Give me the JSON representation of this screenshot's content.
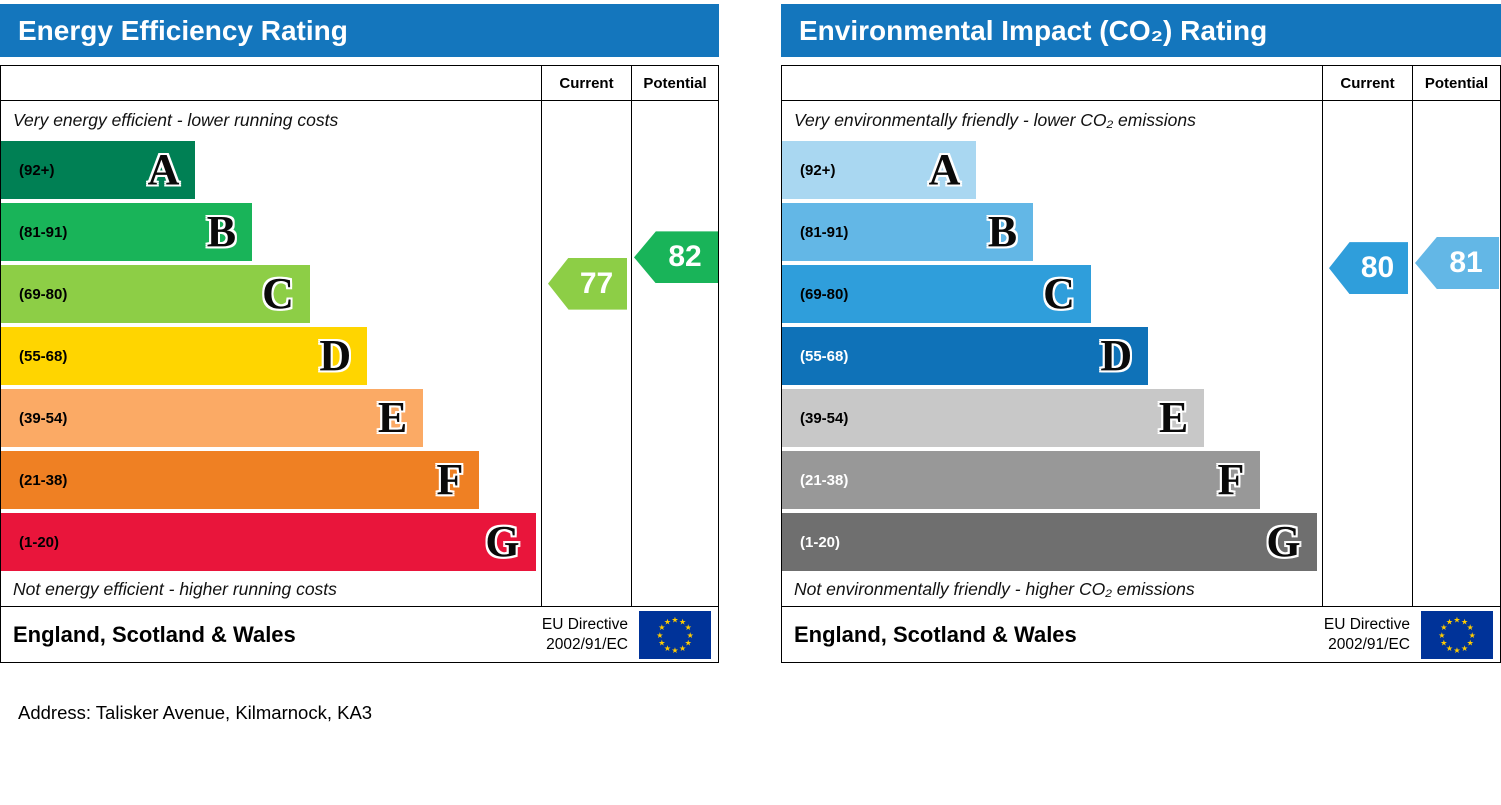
{
  "address_line": "Address: Talisker Avenue, Kilmarnock, KA3",
  "eu_flag": {
    "background": "#003399",
    "star_color": "#ffcc00"
  },
  "chart_data": [
    {
      "type": "bar",
      "subtype": "epc-rating-scale",
      "title": "Energy Efficiency Rating",
      "header_color": "#1476bd",
      "columns": {
        "current": "Current",
        "potential": "Potential"
      },
      "top_note": "Very energy efficient - lower running costs",
      "bottom_note": "Not energy efficient - higher running costs",
      "region": "England, Scotland & Wales",
      "directive_line1": "EU Directive",
      "directive_line2": "2002/91/EC",
      "bands": [
        {
          "label": "(92+)",
          "letter": "A",
          "lo": 92,
          "hi": 100,
          "color": "#008054",
          "width_pct": 36,
          "label_color": "#000000"
        },
        {
          "label": "(81-91)",
          "letter": "B",
          "lo": 81,
          "hi": 91,
          "color": "#19b459",
          "width_pct": 46.5,
          "label_color": "#000000"
        },
        {
          "label": "(69-80)",
          "letter": "C",
          "lo": 69,
          "hi": 80,
          "color": "#8dce46",
          "width_pct": 57.2,
          "label_color": "#000000"
        },
        {
          "label": "(55-68)",
          "letter": "D",
          "lo": 55,
          "hi": 68,
          "color": "#ffd500",
          "width_pct": 67.8,
          "label_color": "#000000"
        },
        {
          "label": "(39-54)",
          "letter": "E",
          "lo": 39,
          "hi": 54,
          "color": "#fbaa65",
          "width_pct": 78.2,
          "label_color": "#000000"
        },
        {
          "label": "(21-38)",
          "letter": "F",
          "lo": 21,
          "hi": 38,
          "color": "#ef8023",
          "width_pct": 88.6,
          "label_color": "#000000"
        },
        {
          "label": "(1-20)",
          "letter": "G",
          "lo": 1,
          "hi": 20,
          "color": "#e9153b",
          "width_pct": 99,
          "label_color": "#000000"
        }
      ],
      "current": {
        "value": 77,
        "band": "C",
        "color": "#8dce46"
      },
      "potential": {
        "value": 82,
        "band": "B",
        "color": "#19b459"
      }
    },
    {
      "type": "bar",
      "subtype": "epc-rating-scale",
      "title": "Environmental Impact (CO₂) Rating",
      "header_color": "#1476bd",
      "columns": {
        "current": "Current",
        "potential": "Potential"
      },
      "top_note": "Very environmentally friendly - lower CO₂ emissions",
      "bottom_note": "Not environmentally friendly - higher CO₂ emissions",
      "region": "England, Scotland & Wales",
      "directive_line1": "EU Directive",
      "directive_line2": "2002/91/EC",
      "bands": [
        {
          "label": "(92+)",
          "letter": "A",
          "lo": 92,
          "hi": 100,
          "color": "#a9d7f1",
          "width_pct": 36,
          "label_color": "#000000"
        },
        {
          "label": "(81-91)",
          "letter": "B",
          "lo": 81,
          "hi": 91,
          "color": "#63b7e6",
          "width_pct": 46.5,
          "label_color": "#000000"
        },
        {
          "label": "(69-80)",
          "letter": "C",
          "lo": 69,
          "hi": 80,
          "color": "#2f9edb",
          "width_pct": 57.2,
          "label_color": "#000000"
        },
        {
          "label": "(55-68)",
          "letter": "D",
          "lo": 55,
          "hi": 68,
          "color": "#0f72b8",
          "width_pct": 67.8,
          "label_color": "#ffffff"
        },
        {
          "label": "(39-54)",
          "letter": "E",
          "lo": 39,
          "hi": 54,
          "color": "#c8c8c8",
          "width_pct": 78.2,
          "label_color": "#000000"
        },
        {
          "label": "(21-38)",
          "letter": "F",
          "lo": 21,
          "hi": 38,
          "color": "#989898",
          "width_pct": 88.6,
          "label_color": "#ffffff"
        },
        {
          "label": "(1-20)",
          "letter": "G",
          "lo": 1,
          "hi": 20,
          "color": "#6f6f6f",
          "width_pct": 99,
          "label_color": "#ffffff"
        }
      ],
      "current": {
        "value": 80,
        "band": "C",
        "color": "#2f9edb"
      },
      "potential": {
        "value": 81,
        "band": "B",
        "color": "#63b7e6"
      }
    }
  ]
}
